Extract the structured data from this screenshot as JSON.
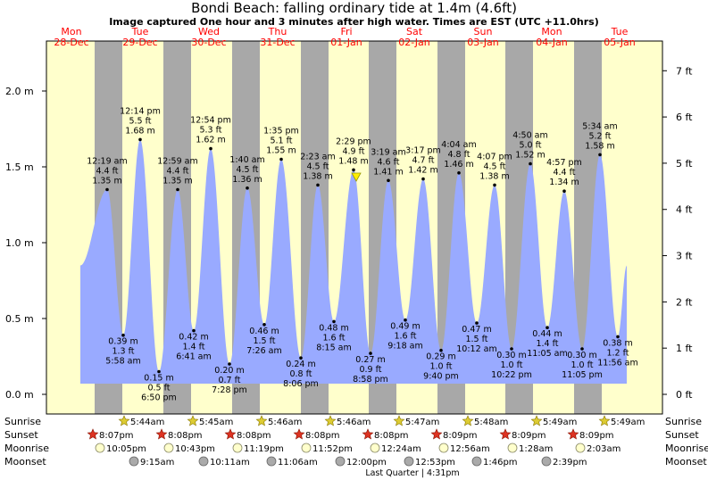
{
  "title": "Bondi Beach: falling  ordinary tide at 1.4m (4.6ft)",
  "subtitle": "Image captured One hour and 3 minutes after high water. Times are EST (UTC +11.0hrs)",
  "colors": {
    "day": "#ffffcc",
    "night": "#a8a8a8",
    "tide": "#99aaff",
    "date_text": "#ff0000"
  },
  "chart_data": {
    "type": "area",
    "title": "Bondi Beach: falling  ordinary tide at 1.4m (4.6ft)",
    "xlabel": "",
    "ylabel": "",
    "ylim": [
      -0.1,
      2.1
    ],
    "grid": false,
    "y_ticks_m": [
      "0.0 m",
      "0.5 m",
      "1.0 m",
      "1.5 m",
      "2.0 m"
    ],
    "y_ticks_ft": [
      "0 ft",
      "1 ft",
      "2 ft",
      "3 ft",
      "4 ft",
      "5 ft",
      "6 ft",
      "7 ft"
    ],
    "days": [
      {
        "day": "Mon",
        "date": "28-Dec"
      },
      {
        "day": "Tue",
        "date": "29-Dec"
      },
      {
        "day": "Wed",
        "date": "30-Dec"
      },
      {
        "day": "Thu",
        "date": "31-Dec"
      },
      {
        "day": "Fri",
        "date": "01-Jan"
      },
      {
        "day": "Sat",
        "date": "02-Jan"
      },
      {
        "day": "Sun",
        "date": "03-Jan"
      },
      {
        "day": "Mon",
        "date": "04-Jan"
      },
      {
        "day": "Tue",
        "date": "05-Jan"
      }
    ],
    "tides": [
      {
        "time": "12:19 am",
        "ft": "4.4 ft",
        "m": 1.35,
        "m_label": "1.35 m",
        "type": "high"
      },
      {
        "time": "5:58 am",
        "ft": "1.3 ft",
        "m": 0.39,
        "m_label": "0.39 m",
        "type": "low"
      },
      {
        "time": "12:14 pm",
        "ft": "5.5 ft",
        "m": 1.68,
        "m_label": "1.68 m",
        "type": "high"
      },
      {
        "time": "6:50 pm",
        "ft": "0.5 ft",
        "m": 0.15,
        "m_label": "0.15 m",
        "type": "low"
      },
      {
        "time": "12:59 am",
        "ft": "4.4 ft",
        "m": 1.35,
        "m_label": "1.35 m",
        "type": "high"
      },
      {
        "time": "6:41 am",
        "ft": "1.4 ft",
        "m": 0.42,
        "m_label": "0.42 m",
        "type": "low"
      },
      {
        "time": "12:54 pm",
        "ft": "5.3 ft",
        "m": 1.62,
        "m_label": "1.62 m",
        "type": "high"
      },
      {
        "time": "7:28 pm",
        "ft": "0.7 ft",
        "m": 0.2,
        "m_label": "0.20 m",
        "type": "low"
      },
      {
        "time": "1:40 am",
        "ft": "4.5 ft",
        "m": 1.36,
        "m_label": "1.36 m",
        "type": "high"
      },
      {
        "time": "7:26 am",
        "ft": "1.5 ft",
        "m": 0.46,
        "m_label": "0.46 m",
        "type": "low"
      },
      {
        "time": "1:35 pm",
        "ft": "5.1 ft",
        "m": 1.55,
        "m_label": "1.55 m",
        "type": "high"
      },
      {
        "time": "8:06 pm",
        "ft": "0.8 ft",
        "m": 0.24,
        "m_label": "0.24 m",
        "type": "low"
      },
      {
        "time": "2:23 am",
        "ft": "4.5 ft",
        "m": 1.38,
        "m_label": "1.38 m",
        "type": "high"
      },
      {
        "time": "8:15 am",
        "ft": "1.6 ft",
        "m": 0.48,
        "m_label": "0.48 m",
        "type": "low"
      },
      {
        "time": "2:29 pm",
        "ft": "4.9 ft",
        "m": 1.48,
        "m_label": "1.48 m",
        "type": "high"
      },
      {
        "time": "8:58 pm",
        "ft": "0.9 ft",
        "m": 0.27,
        "m_label": "0.27 m",
        "type": "low"
      },
      {
        "time": "3:19 am",
        "ft": "4.6 ft",
        "m": 1.41,
        "m_label": "1.41 m",
        "type": "high"
      },
      {
        "time": "9:18 am",
        "ft": "1.6 ft",
        "m": 0.49,
        "m_label": "0.49 m",
        "type": "low"
      },
      {
        "time": "3:17 pm",
        "ft": "4.7 ft",
        "m": 1.42,
        "m_label": "1.42 m",
        "type": "high"
      },
      {
        "time": "9:40 pm",
        "ft": "1.0 ft",
        "m": 0.29,
        "m_label": "0.29 m",
        "type": "low"
      },
      {
        "time": "4:04 am",
        "ft": "4.8 ft",
        "m": 1.46,
        "m_label": "1.46 m",
        "type": "high"
      },
      {
        "time": "10:12 am",
        "ft": "1.5 ft",
        "m": 0.47,
        "m_label": "0.47 m",
        "type": "low"
      },
      {
        "time": "4:07 pm",
        "ft": "4.5 ft",
        "m": 1.38,
        "m_label": "1.38 m",
        "type": "high"
      },
      {
        "time": "10:22 pm",
        "ft": "1.0 ft",
        "m": 0.3,
        "m_label": "0.30 m",
        "type": "low"
      },
      {
        "time": "4:50 am",
        "ft": "5.0 ft",
        "m": 1.52,
        "m_label": "1.52 m",
        "type": "high"
      },
      {
        "time": "11:05 am",
        "ft": "1.4 ft",
        "m": 0.44,
        "m_label": "0.44 m",
        "type": "low"
      },
      {
        "time": "4:57 pm",
        "ft": "4.4 ft",
        "m": 1.34,
        "m_label": "1.34 m",
        "type": "high"
      },
      {
        "time": "11:05 pm",
        "ft": "1.0 ft",
        "m": 0.3,
        "m_label": "0.30 m",
        "type": "low"
      },
      {
        "time": "5:34 am",
        "ft": "5.2 ft",
        "m": 1.58,
        "m_label": "1.58 m",
        "type": "high"
      },
      {
        "time": "11:56 am",
        "ft": "1.2 ft",
        "m": 0.38,
        "m_label": "0.38 m",
        "type": "low"
      }
    ],
    "current": {
      "m": 1.4,
      "ft": 4.6
    },
    "astro_labels": [
      "Sunrise",
      "Sunset",
      "Moonrise",
      "Moonset"
    ],
    "sunrise": [
      "5:44am",
      "5:45am",
      "5:46am",
      "5:46am",
      "5:47am",
      "5:48am",
      "5:49am",
      "5:49am"
    ],
    "sunset": [
      "8:07pm",
      "8:08pm",
      "8:08pm",
      "8:08pm",
      "8:08pm",
      "8:09pm",
      "8:09pm",
      "8:09pm"
    ],
    "moonrise": [
      "10:05pm",
      "10:43pm",
      "11:19pm",
      "11:52pm",
      "12:24am",
      "12:56am",
      "1:28am",
      "2:03am"
    ],
    "moonset": [
      "9:15am",
      "10:11am",
      "11:06am",
      "12:00pm",
      "12:53pm",
      "1:46pm",
      "2:39pm"
    ],
    "moon_phase": "Last Quarter | 4:31pm"
  }
}
